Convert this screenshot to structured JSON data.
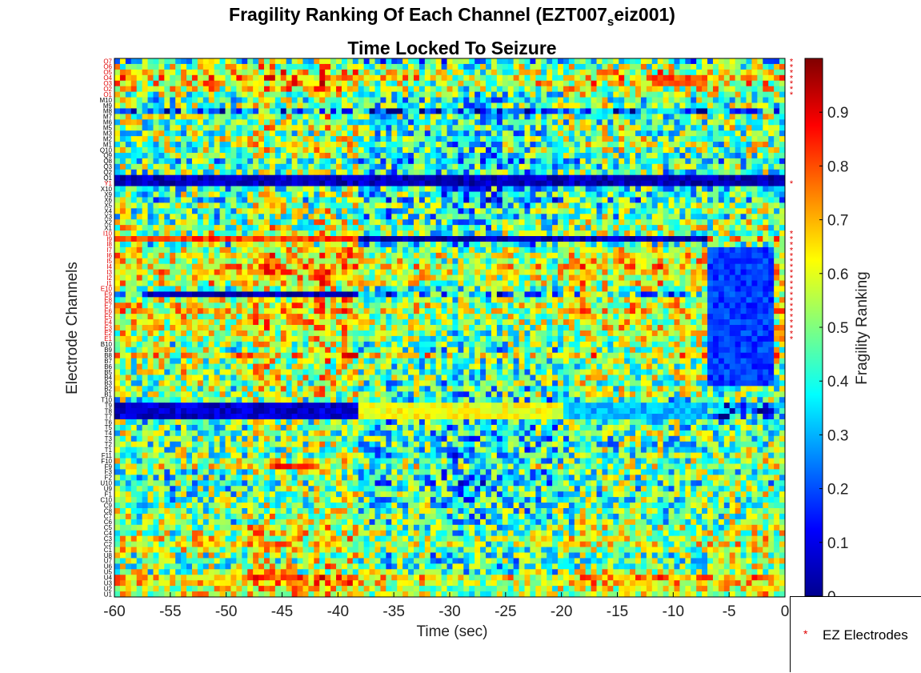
{
  "chart_data": {
    "type": "heatmap",
    "title_main": "Fragility Ranking Of Each Channel (EZT007",
    "title_sub": "s",
    "title_tail": "eiz001)",
    "subtitle": "Time Locked To Seizure",
    "xlabel": "Time (sec)",
    "ylabel": "Electrode Channels",
    "colorbar_label": "Fragility Ranking",
    "colormap": "jet",
    "xlim": [
      -60,
      0
    ],
    "x_ticks": [
      "-60",
      "-55",
      "-50",
      "-45",
      "-40",
      "-35",
      "-30",
      "-25",
      "-20",
      "-15",
      "-10",
      "-5",
      "0"
    ],
    "clim": [
      0,
      1
    ],
    "colorbar_ticks": [
      "0",
      "0.1",
      "0.2",
      "0.3",
      "0.4",
      "0.5",
      "0.6",
      "0.7",
      "0.8",
      "0.9"
    ],
    "legend": {
      "marker": "*",
      "label": "EZ Electrodes",
      "color": "#e00000"
    },
    "n_time_bins": 121,
    "channels": [
      "O7",
      "O6",
      "O5",
      "O4",
      "O3",
      "O2",
      "O1",
      "M10",
      "M9",
      "M8",
      "M7",
      "M6",
      "M5",
      "M3",
      "M2",
      "M1",
      "Q10",
      "Q9",
      "Q8",
      "Q3",
      "Q2",
      "Q1",
      "Y1",
      "X10",
      "X9",
      "X6",
      "X5",
      "X4",
      "X3",
      "X2",
      "X1",
      "I10",
      "I9",
      "I8",
      "I7",
      "I6",
      "I5",
      "I4",
      "I3",
      "I2",
      "I1",
      "E10",
      "E9",
      "E8",
      "E7",
      "E6",
      "E5",
      "E4",
      "E3",
      "E2",
      "E1",
      "B10",
      "B9",
      "B8",
      "B7",
      "B6",
      "B5",
      "B4",
      "B3",
      "B2",
      "B1",
      "T10",
      "T9",
      "T8",
      "T7",
      "T6",
      "T5",
      "T4",
      "T3",
      "T2",
      "T1",
      "F11",
      "F10",
      "F9",
      "F3",
      "F2",
      "U10",
      "U9",
      "F1",
      "C10",
      "C9",
      "C8",
      "C7",
      "C6",
      "C5",
      "C4",
      "C3",
      "C2",
      "C1",
      "U8",
      "U7",
      "U6",
      "U5",
      "U4",
      "U3",
      "U2",
      "U1"
    ],
    "ez_channels": [
      "O7",
      "O6",
      "O5",
      "O4",
      "O3",
      "O2",
      "O1",
      "Y1",
      "I10",
      "I9",
      "I8",
      "I7",
      "I6",
      "I5",
      "I4",
      "I3",
      "I2",
      "I1",
      "E10",
      "E9",
      "E8",
      "E7",
      "E6",
      "E5",
      "E4",
      "E3",
      "E2",
      "E1"
    ],
    "dark_color": "#000000",
    "ez_color": "#e00000",
    "row_profiles": {
      "O7": {
        "base": 0.42,
        "var": 0.28
      },
      "O6": {
        "base": 0.55,
        "var": 0.25
      },
      "O5": {
        "base": 0.6,
        "var": 0.25
      },
      "O4": {
        "base": 0.66,
        "var": 0.22
      },
      "O3": {
        "base": 0.62,
        "var": 0.25
      },
      "O2": {
        "base": 0.58,
        "var": 0.25
      },
      "O1": {
        "base": 0.5,
        "var": 0.25
      },
      "M10": {
        "base": 0.45,
        "var": 0.25
      },
      "M9": {
        "base": 0.48,
        "var": 0.25
      },
      "M8": {
        "base": 0.22,
        "var": 0.3
      },
      "M7": {
        "base": 0.5,
        "var": 0.25
      },
      "M6": {
        "base": 0.48,
        "var": 0.25
      },
      "M5": {
        "base": 0.5,
        "var": 0.25
      },
      "M3": {
        "base": 0.45,
        "var": 0.27
      },
      "M2": {
        "base": 0.52,
        "var": 0.25
      },
      "M1": {
        "base": 0.5,
        "var": 0.25
      },
      "Q10": {
        "base": 0.5,
        "var": 0.25
      },
      "Q9": {
        "base": 0.45,
        "var": 0.25
      },
      "Q8": {
        "base": 0.4,
        "var": 0.25
      },
      "Q3": {
        "base": 0.48,
        "var": 0.25
      },
      "Q2": {
        "base": 0.45,
        "var": 0.25
      },
      "Q1": {
        "base": 0.14,
        "var": 0.2
      },
      "Y1": {
        "base": 0.08,
        "var": 0.12
      },
      "X10": {
        "base": 0.42,
        "var": 0.25
      },
      "X9": {
        "base": 0.45,
        "var": 0.25
      },
      "X6": {
        "base": 0.4,
        "var": 0.25
      },
      "X5": {
        "base": 0.48,
        "var": 0.25
      },
      "X4": {
        "base": 0.48,
        "var": 0.25
      },
      "X3": {
        "base": 0.45,
        "var": 0.25
      },
      "X2": {
        "base": 0.5,
        "var": 0.25
      },
      "X1": {
        "base": 0.52,
        "var": 0.25
      },
      "I10": {
        "base": 0.52,
        "var": 0.25
      },
      "I9": {
        "base": 0.62,
        "var": 0.25
      },
      "I8": {
        "base": 0.45,
        "var": 0.25
      },
      "I7": {
        "base": 0.56,
        "var": 0.22
      },
      "I6": {
        "base": 0.62,
        "var": 0.22
      },
      "I5": {
        "base": 0.6,
        "var": 0.22
      },
      "I4": {
        "base": 0.66,
        "var": 0.2
      },
      "I3": {
        "base": 0.64,
        "var": 0.2
      },
      "I2": {
        "base": 0.62,
        "var": 0.2
      },
      "I1": {
        "base": 0.6,
        "var": 0.22
      },
      "E10": {
        "base": 0.52,
        "var": 0.25
      },
      "E9": {
        "base": 0.4,
        "var": 0.3
      },
      "E8": {
        "base": 0.58,
        "var": 0.22
      },
      "E7": {
        "base": 0.6,
        "var": 0.22
      },
      "E6": {
        "base": 0.62,
        "var": 0.22
      },
      "E5": {
        "base": 0.58,
        "var": 0.22
      },
      "E4": {
        "base": 0.6,
        "var": 0.22
      },
      "E3": {
        "base": 0.58,
        "var": 0.22
      },
      "E2": {
        "base": 0.56,
        "var": 0.22
      },
      "E1": {
        "base": 0.56,
        "var": 0.22
      },
      "B10": {
        "base": 0.5,
        "var": 0.25
      },
      "B9": {
        "base": 0.5,
        "var": 0.25
      },
      "B8": {
        "base": 0.62,
        "var": 0.25
      },
      "B7": {
        "base": 0.52,
        "var": 0.25
      },
      "B6": {
        "base": 0.5,
        "var": 0.25
      },
      "B5": {
        "base": 0.52,
        "var": 0.25
      },
      "B4": {
        "base": 0.54,
        "var": 0.25
      },
      "B3": {
        "base": 0.5,
        "var": 0.25
      },
      "B2": {
        "base": 0.5,
        "var": 0.25
      },
      "B1": {
        "base": 0.5,
        "var": 0.25
      },
      "T10": {
        "base": 0.45,
        "var": 0.25
      },
      "T9": {
        "base": 0.25,
        "var": 0.3
      },
      "T8": {
        "base": 0.25,
        "var": 0.3
      },
      "T7": {
        "base": 0.25,
        "var": 0.3
      },
      "T6": {
        "base": 0.45,
        "var": 0.25
      },
      "T5": {
        "base": 0.45,
        "var": 0.25
      },
      "T4": {
        "base": 0.48,
        "var": 0.25
      },
      "T3": {
        "base": 0.45,
        "var": 0.25
      },
      "T2": {
        "base": 0.45,
        "var": 0.25
      },
      "T1": {
        "base": 0.45,
        "var": 0.25
      },
      "F11": {
        "base": 0.45,
        "var": 0.25
      },
      "F10": {
        "base": 0.5,
        "var": 0.25
      },
      "F9": {
        "base": 0.55,
        "var": 0.25
      },
      "F3": {
        "base": 0.45,
        "var": 0.25
      },
      "F2": {
        "base": 0.45,
        "var": 0.25
      },
      "U10": {
        "base": 0.42,
        "var": 0.27
      },
      "U9": {
        "base": 0.45,
        "var": 0.25
      },
      "F1": {
        "base": 0.48,
        "var": 0.25
      },
      "C10": {
        "base": 0.45,
        "var": 0.25
      },
      "C9": {
        "base": 0.48,
        "var": 0.25
      },
      "C8": {
        "base": 0.5,
        "var": 0.25
      },
      "C7": {
        "base": 0.5,
        "var": 0.25
      },
      "C6": {
        "base": 0.48,
        "var": 0.25
      },
      "C5": {
        "base": 0.52,
        "var": 0.25
      },
      "C4": {
        "base": 0.55,
        "var": 0.25
      },
      "C3": {
        "base": 0.58,
        "var": 0.22
      },
      "C2": {
        "base": 0.58,
        "var": 0.22
      },
      "C1": {
        "base": 0.55,
        "var": 0.22
      },
      "U8": {
        "base": 0.5,
        "var": 0.25
      },
      "U7": {
        "base": 0.48,
        "var": 0.25
      },
      "U6": {
        "base": 0.5,
        "var": 0.25
      },
      "U5": {
        "base": 0.52,
        "var": 0.25
      },
      "U4": {
        "base": 0.7,
        "var": 0.18
      },
      "U3": {
        "base": 0.66,
        "var": 0.18
      },
      "U2": {
        "base": 0.6,
        "var": 0.2
      },
      "U1": {
        "base": 0.6,
        "var": 0.2
      }
    },
    "patterns": [
      {
        "rows": [
          "Q1",
          "Y1"
        ],
        "x_from": -60,
        "x_to": 0,
        "value": 0.06,
        "note": "dark blue band"
      },
      {
        "rows": [
          "I9"
        ],
        "x_from": -38,
        "x_to": -7,
        "value": 0.05,
        "note": "dark blue streak"
      },
      {
        "rows": [
          "I9"
        ],
        "x_from": -60,
        "x_to": -38,
        "value": 0.82,
        "note": "red streak"
      },
      {
        "rows": [
          "E9"
        ],
        "x_from": -57,
        "x_to": -38,
        "value": 0.05,
        "note": "dark blue streak"
      },
      {
        "rows": [
          "T9",
          "T8",
          "T7"
        ],
        "x_from": -60,
        "x_to": -38,
        "value": 0.08,
        "note": "dark blue band"
      },
      {
        "rows": [
          "T9",
          "T8",
          "T7"
        ],
        "x_from": -38,
        "x_to": -20,
        "value": 0.62,
        "note": "yellow band"
      },
      {
        "rows": [
          "T9",
          "T8",
          "T7"
        ],
        "x_from": -20,
        "x_to": -7,
        "value": 0.3,
        "note": "mixed blue/yellow"
      },
      {
        "rows": [
          "I7",
          "I6",
          "I5",
          "I4",
          "I3",
          "I2",
          "I1",
          "E10",
          "E9",
          "E8",
          "E7",
          "E6",
          "E5",
          "E4",
          "E3",
          "E2",
          "E1",
          "B10",
          "B9",
          "B8",
          "B7",
          "B6",
          "B5",
          "B4",
          "B3"
        ],
        "x_from": -7,
        "x_to": -1,
        "value": 0.18,
        "note": "blue patch before onset"
      },
      {
        "rows": [
          "F9"
        ],
        "x_from": -46,
        "x_to": -42,
        "value": 0.85,
        "note": "red streak"
      },
      {
        "rows": [
          "O4",
          "O3"
        ],
        "x_from": -12,
        "x_to": -7,
        "value": 0.8,
        "note": "orange streak"
      }
    ]
  }
}
